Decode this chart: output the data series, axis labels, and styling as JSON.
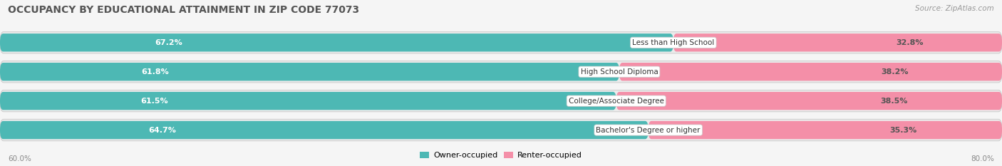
{
  "title": "OCCUPANCY BY EDUCATIONAL ATTAINMENT IN ZIP CODE 77073",
  "source": "Source: ZipAtlas.com",
  "categories": [
    "Less than High School",
    "High School Diploma",
    "College/Associate Degree",
    "Bachelor's Degree or higher"
  ],
  "owner_pct": [
    67.2,
    61.8,
    61.5,
    64.7
  ],
  "renter_pct": [
    32.8,
    38.2,
    38.5,
    35.3
  ],
  "owner_color": "#4db8b4",
  "renter_color": "#f48fa8",
  "bar_bg_color": "#e4e4e4",
  "row_bg_color": "#ebebeb",
  "axis_left_label": "60.0%",
  "axis_right_label": "80.0%",
  "background_color": "#f5f5f5",
  "title_fontsize": 10,
  "source_fontsize": 7.5,
  "label_fontsize": 8,
  "cat_fontsize": 7.5
}
